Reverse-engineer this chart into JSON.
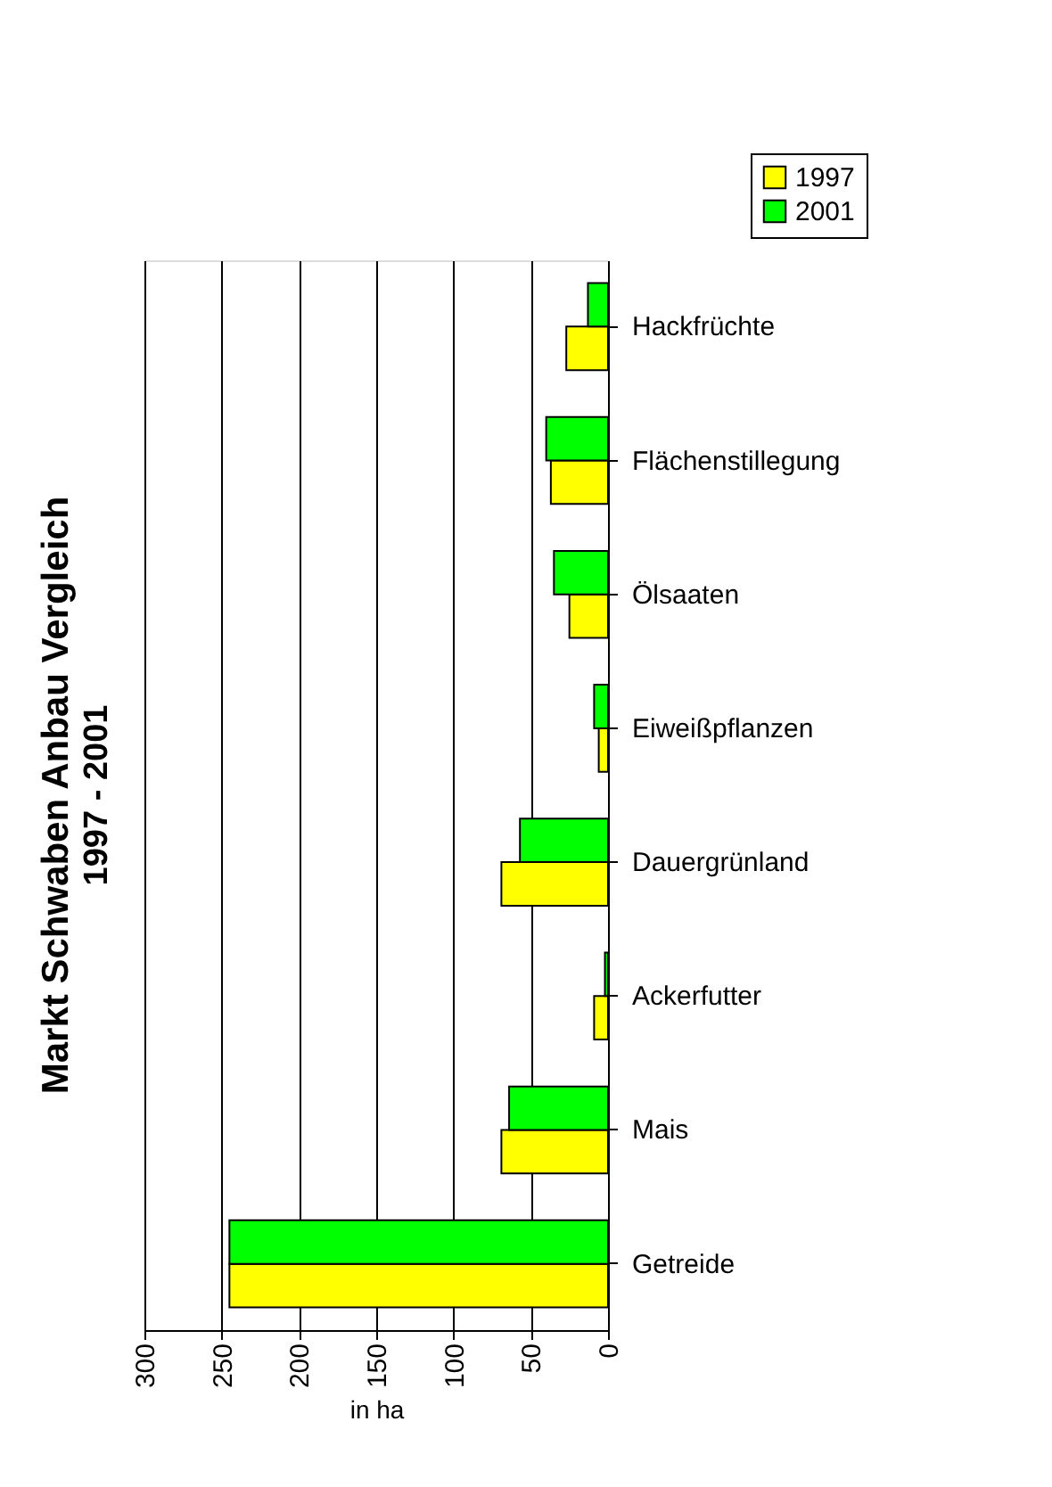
{
  "chart_data": {
    "type": "bar",
    "orientation": "horizontal",
    "title": "Markt Schwaben Anbau Vergleich",
    "subtitle": "1997 - 2001",
    "xlabel": "in ha",
    "categories": [
      "Hackfrüchte",
      "Flächenstillegung",
      "Ölsaaten",
      "Eiweißpflanzen",
      "Dauergrünland",
      "Ackerfutter",
      "Mais",
      "Getreide"
    ],
    "series": [
      {
        "name": "1997",
        "color": "#ffff00",
        "values": [
          27,
          37,
          25,
          6,
          69,
          9,
          69,
          245
        ]
      },
      {
        "name": "2001",
        "color": "#00ff00",
        "values": [
          13,
          40,
          35,
          9,
          57,
          2,
          64,
          245
        ]
      }
    ],
    "xlim": [
      300,
      0
    ],
    "xticks": [
      300,
      250,
      200,
      150,
      100,
      50,
      0
    ],
    "grid": "x",
    "legend": "top right"
  }
}
